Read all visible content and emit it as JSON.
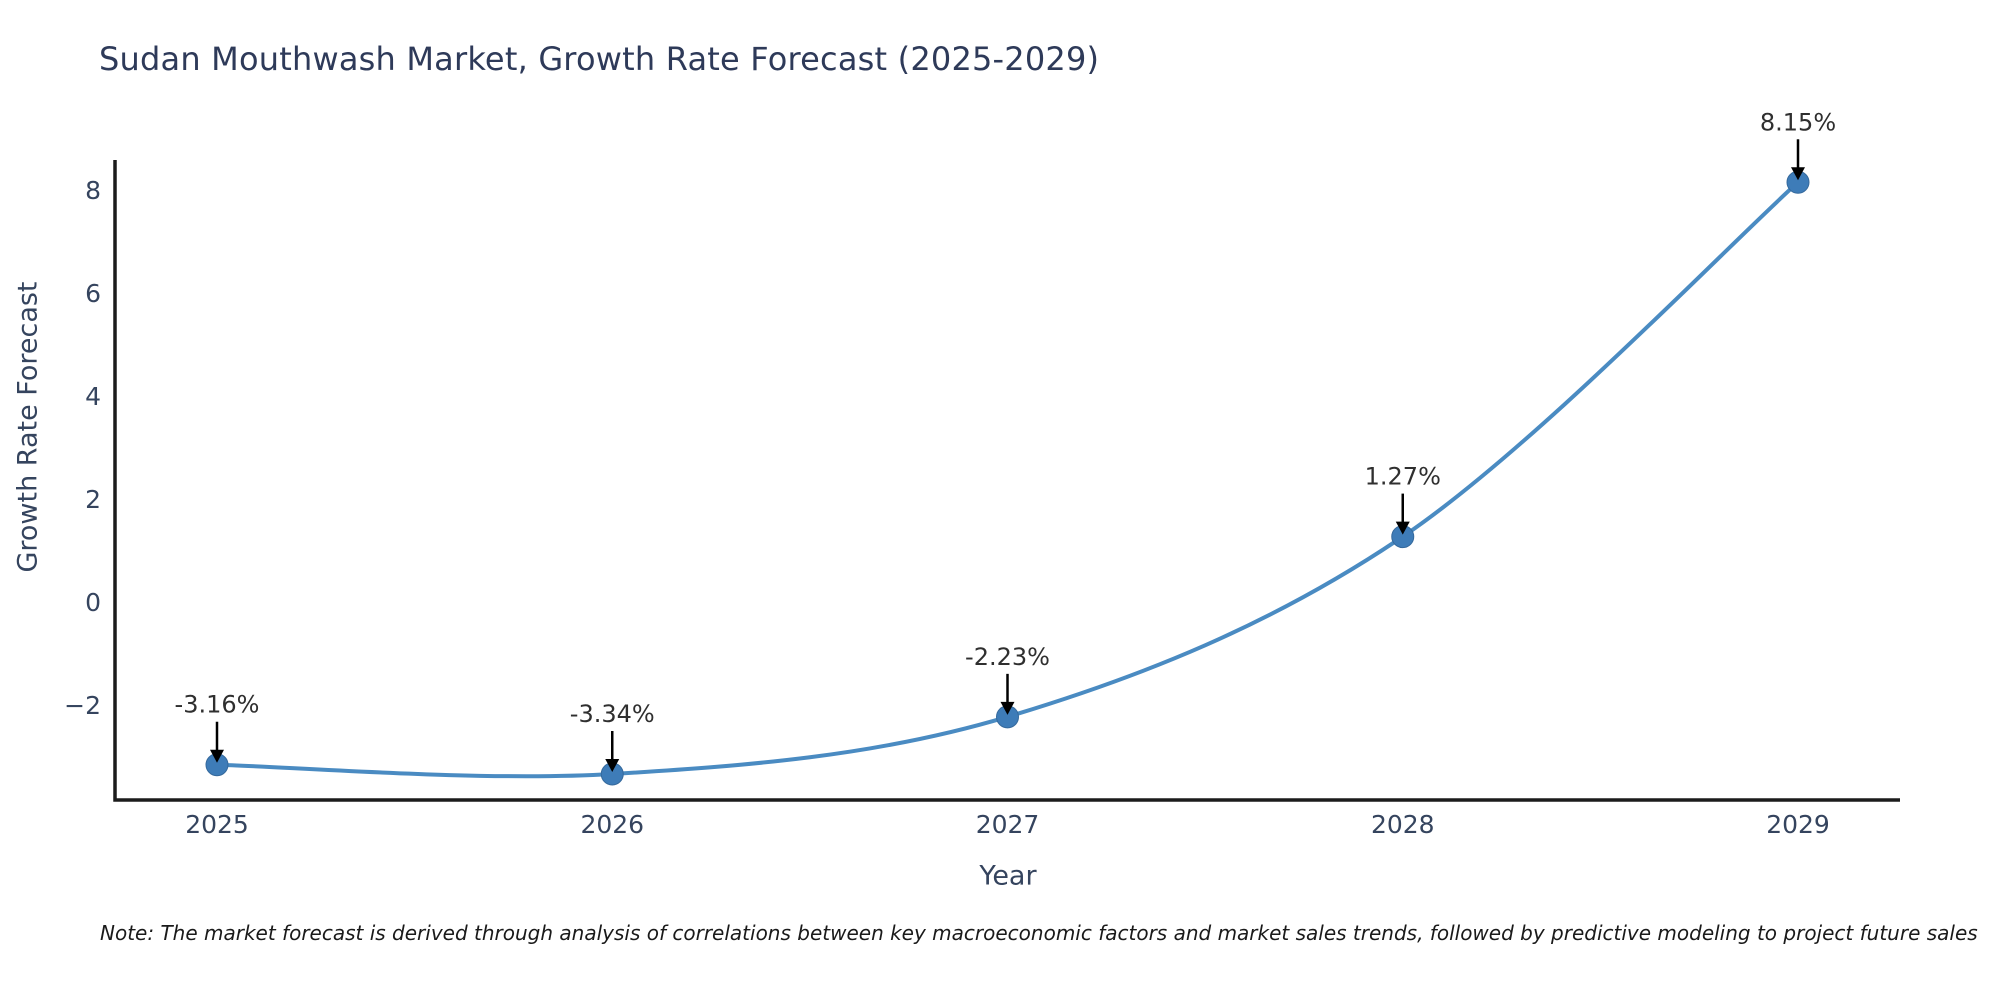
{
  "note": "Note: The market forecast is derived through analysis of correlations between key macroeconomic factors and market sales trends, followed by predictive modeling to project future sales",
  "chart_data": {
    "type": "line",
    "title": "Sudan Mouthwash Market, Growth Rate Forecast (2025-2029)",
    "xlabel": "Year",
    "ylabel": "Growth Rate Forecast",
    "x": [
      "2025",
      "2026",
      "2027",
      "2028",
      "2029"
    ],
    "series": [
      {
        "name": "Growth Rate Forecast",
        "values": [
          -3.16,
          -3.34,
          -2.23,
          1.27,
          8.15
        ]
      }
    ],
    "point_labels": [
      "-3.16%",
      "-3.34%",
      "-2.23%",
      "1.27%",
      "8.15%"
    ],
    "ytick_values": [
      -2,
      0,
      2,
      4,
      6,
      8
    ],
    "ytick_labels": [
      "−2",
      "0",
      "2",
      "4",
      "6",
      "8"
    ],
    "ylim": [
      -3.85,
      8.58
    ],
    "grid": false,
    "legend": false,
    "colors": {
      "line": "#4a8bc2",
      "marker": "#3e7cb8",
      "marker_edge": "#35699c",
      "axis": "#1c1c1c",
      "arrow": "#000000",
      "annotation_text": "#2f2f2f",
      "tick_text": "#35445e",
      "title_text": "#2e3a59"
    }
  }
}
